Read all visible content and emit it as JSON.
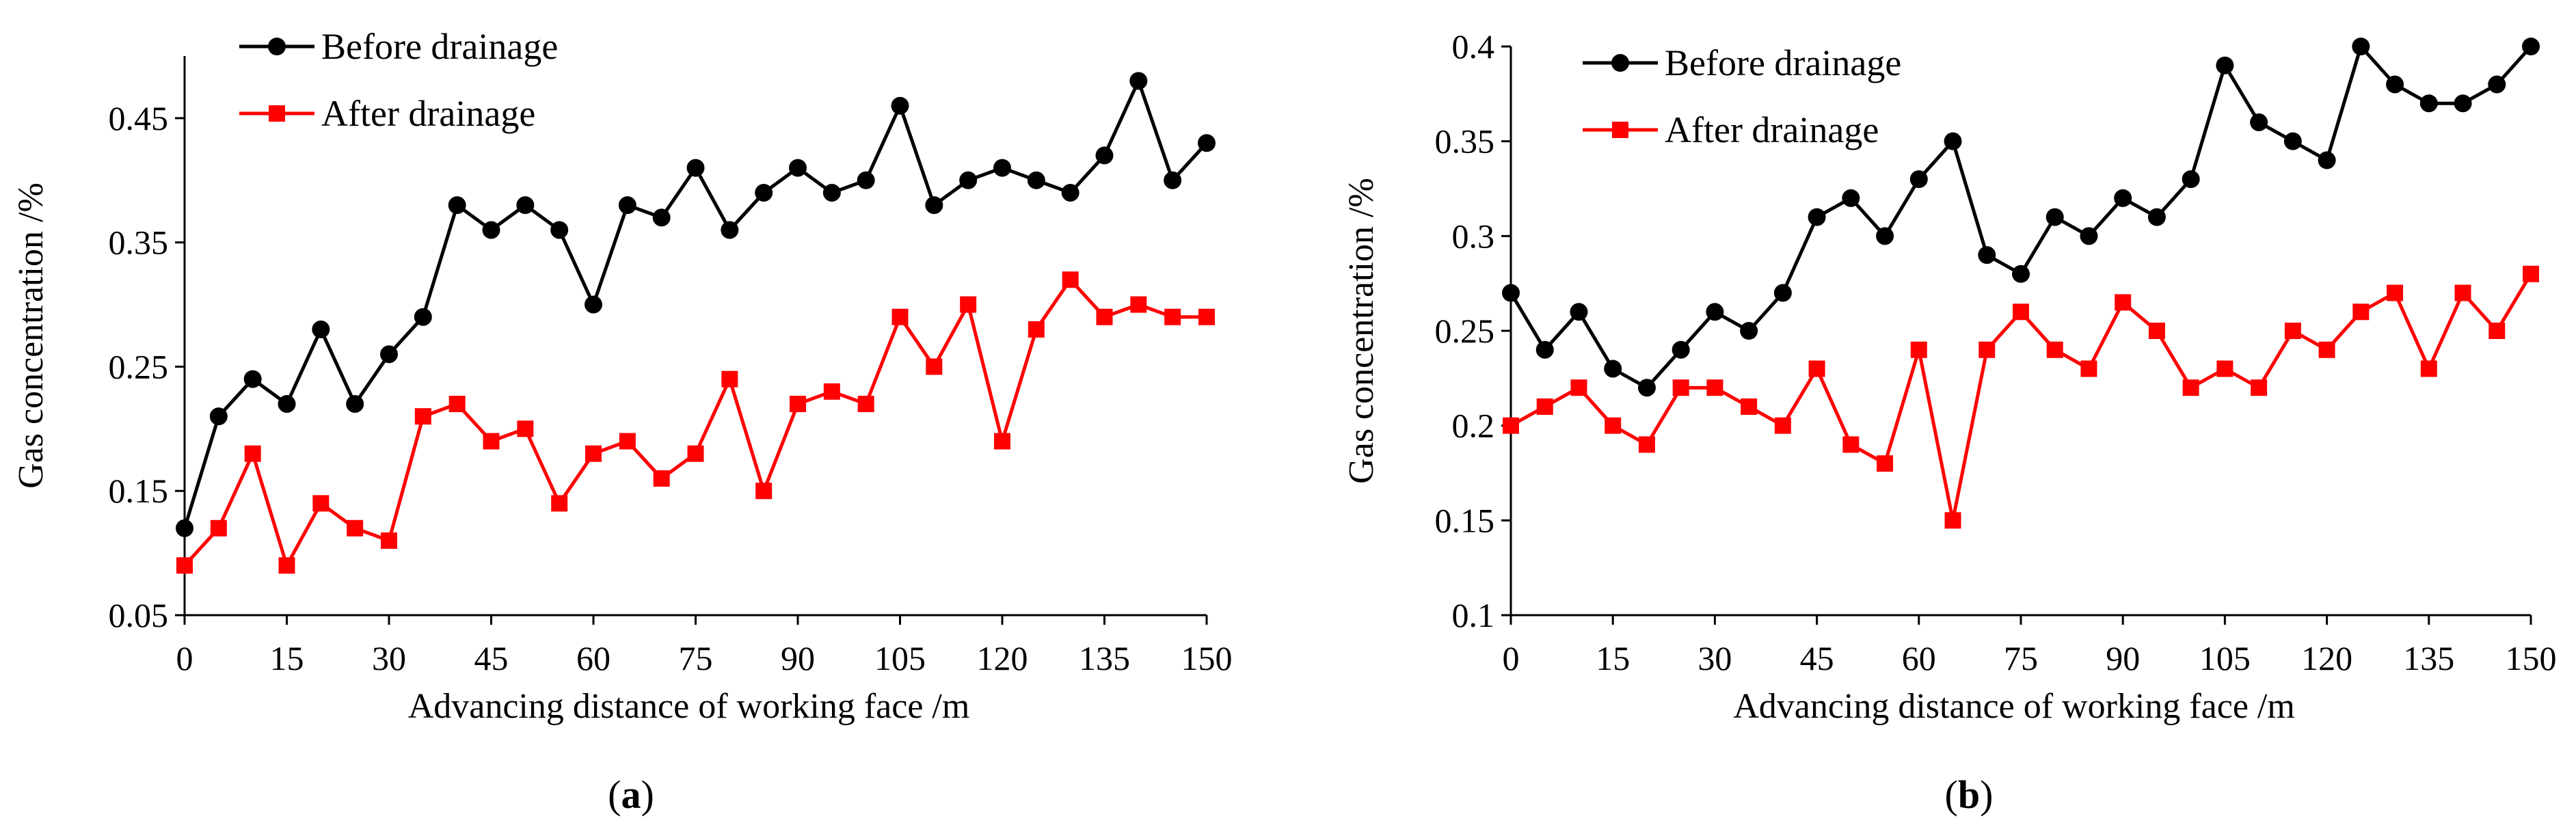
{
  "chart_data": [
    {
      "type": "line",
      "panel_label": {
        "open": "(",
        "letter": "a",
        "close": ")"
      },
      "xlabel": "Advancing distance of working face /m",
      "ylabel": "Gas concentration /%",
      "xlim": [
        0,
        150
      ],
      "ylim": [
        0.05,
        0.5
      ],
      "x_ticks": [
        0,
        15,
        30,
        45,
        60,
        75,
        90,
        105,
        120,
        135,
        150
      ],
      "x_tick_labels": [
        "0",
        "15",
        "30",
        "45",
        "60",
        "75",
        "90",
        "105",
        "120",
        "135",
        "150"
      ],
      "y_ticks": [
        0.05,
        0.15,
        0.25,
        0.35,
        0.45
      ],
      "y_tick_labels": [
        "0.05",
        "0.15",
        "0.25",
        "0.35",
        "0.45"
      ],
      "grid": false,
      "legend_position": "top-left",
      "x": [
        0,
        5,
        10,
        15,
        20,
        25,
        30,
        35,
        40,
        45,
        50,
        55,
        60,
        65,
        70,
        75,
        80,
        85,
        90,
        95,
        100,
        105,
        110,
        115,
        120,
        125,
        130,
        135,
        140,
        145,
        150
      ],
      "series": [
        {
          "name": "Before drainage",
          "color": "#000000",
          "marker": "circle",
          "values": [
            0.12,
            0.21,
            0.24,
            0.22,
            0.28,
            0.22,
            0.26,
            0.29,
            0.38,
            0.36,
            0.38,
            0.36,
            0.3,
            0.38,
            0.37,
            0.41,
            0.36,
            0.39,
            0.41,
            0.39,
            0.4,
            0.46,
            0.38,
            0.4,
            0.41,
            0.4,
            0.39,
            0.42,
            0.48,
            0.4,
            0.43
          ]
        },
        {
          "name": "After drainage",
          "color": "#ff0000",
          "marker": "square",
          "values": [
            0.09,
            0.12,
            0.18,
            0.09,
            0.14,
            0.12,
            0.11,
            0.21,
            0.22,
            0.19,
            0.2,
            0.14,
            0.18,
            0.19,
            0.16,
            0.18,
            0.24,
            0.15,
            0.22,
            0.23,
            0.22,
            0.29,
            0.25,
            0.3,
            0.19,
            0.28,
            0.32,
            0.29,
            0.3,
            0.29,
            0.29
          ]
        }
      ]
    },
    {
      "type": "line",
      "panel_label": {
        "open": "(",
        "letter": "b",
        "close": ")"
      },
      "xlabel": "Advancing distance of working face /m",
      "ylabel": "Gas concentration /%",
      "xlim": [
        0,
        150
      ],
      "ylim": [
        0.1,
        0.4
      ],
      "x_ticks": [
        0,
        15,
        30,
        45,
        60,
        75,
        90,
        105,
        120,
        135,
        150
      ],
      "x_tick_labels": [
        "0",
        "15",
        "30",
        "45",
        "60",
        "75",
        "90",
        "105",
        "120",
        "135",
        "150"
      ],
      "y_ticks": [
        0.1,
        0.15,
        0.2,
        0.25,
        0.3,
        0.35,
        0.4
      ],
      "y_tick_labels": [
        "0.1",
        "0.15",
        "0.2",
        "0.25",
        "0.3",
        "0.35",
        "0.4"
      ],
      "grid": false,
      "legend_position": "top-left",
      "x": [
        0,
        5,
        10,
        15,
        20,
        25,
        30,
        35,
        40,
        45,
        50,
        55,
        60,
        65,
        70,
        75,
        80,
        85,
        90,
        95,
        100,
        105,
        110,
        115,
        120,
        125,
        130,
        135,
        140,
        145,
        150
      ],
      "series": [
        {
          "name": "Before drainage",
          "color": "#000000",
          "marker": "circle",
          "values": [
            0.27,
            0.24,
            0.26,
            0.23,
            0.22,
            0.24,
            0.26,
            0.25,
            0.27,
            0.31,
            0.32,
            0.3,
            0.33,
            0.35,
            0.29,
            0.28,
            0.31,
            0.3,
            0.32,
            0.31,
            0.33,
            0.39,
            0.36,
            0.35,
            0.34,
            0.4,
            0.38,
            0.37,
            0.37,
            0.38,
            0.4
          ]
        },
        {
          "name": "After drainage",
          "color": "#ff0000",
          "marker": "square",
          "values": [
            0.2,
            0.21,
            0.22,
            0.2,
            0.19,
            0.22,
            0.22,
            0.21,
            0.2,
            0.23,
            0.19,
            0.18,
            0.24,
            0.15,
            0.24,
            0.26,
            0.24,
            0.23,
            0.265,
            0.25,
            0.22,
            0.23,
            0.22,
            0.25,
            0.24,
            0.26,
            0.27,
            0.23,
            0.27,
            0.25,
            0.28
          ]
        }
      ]
    }
  ]
}
